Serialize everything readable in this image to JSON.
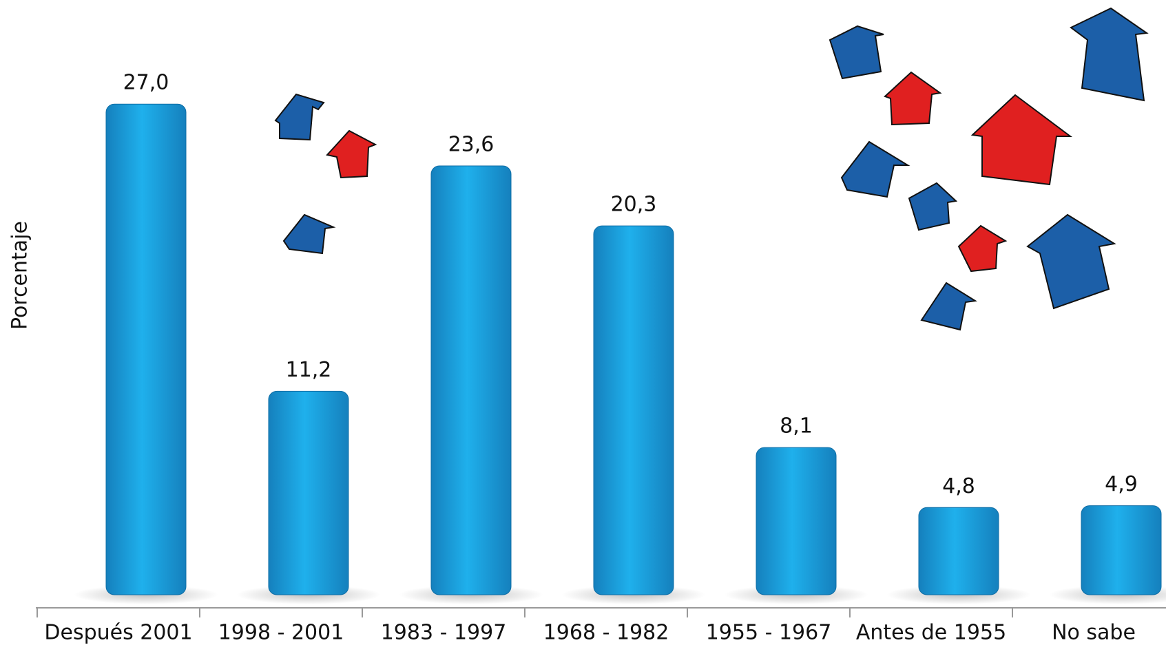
{
  "chart_data": {
    "type": "bar",
    "y_label": "Porcentaje",
    "categories": [
      "Después 2001",
      "1998 - 2001",
      "1983 - 1997",
      "1968 - 1982",
      "1955 - 1967",
      "Antes de 1955",
      "No sabe"
    ],
    "values": [
      27.0,
      11.2,
      23.6,
      20.3,
      8.1,
      4.8,
      4.9
    ],
    "value_labels": [
      "27,0",
      "11,2",
      "23,6",
      "20,3",
      "8,1",
      "4,8",
      "4,9"
    ],
    "color": "#1a96d4"
  }
}
